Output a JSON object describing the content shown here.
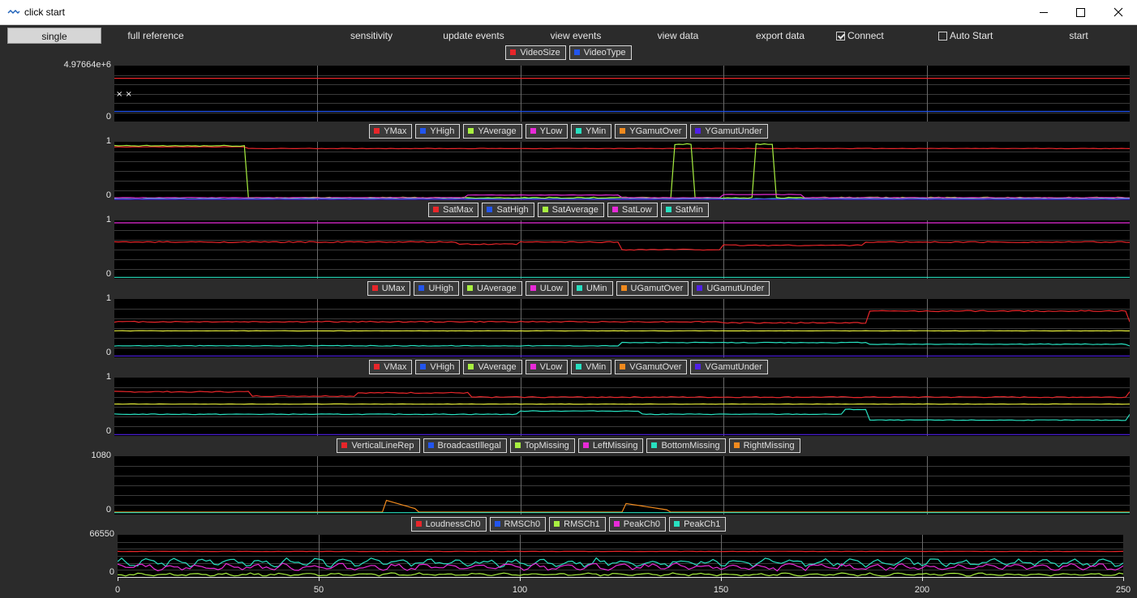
{
  "window": {
    "title": "click start",
    "icon": "app-wave-icon",
    "controls": [
      "minimize-icon",
      "maximize-icon",
      "close-icon"
    ]
  },
  "toolbar": {
    "buttons": [
      "single",
      "full reference",
      "sensitivity",
      "update events",
      "view events",
      "view data",
      "export data",
      "start"
    ],
    "active": "single",
    "checkboxes": [
      {
        "label": "Connect",
        "checked": true
      },
      {
        "label": "Auto Start",
        "checked": false
      }
    ]
  },
  "colors": {
    "red": "#e8262a",
    "blue": "#2255ee",
    "green": "#a8f040",
    "magenta": "#e82ad8",
    "cyan": "#28e0c0",
    "orange": "#f08a1e",
    "indigo": "#5020e8",
    "yellow": "#e6ee3a"
  },
  "chart_data": [
    {
      "type": "line",
      "legend": [
        {
          "name": "VideoSize",
          "color": "#e8262a"
        },
        {
          "name": "VideoType",
          "color": "#2255ee"
        }
      ],
      "ylim_labels": [
        "4.97664e+6",
        "0"
      ],
      "xlim": [
        0,
        250
      ],
      "series": [
        {
          "name": "VideoSize",
          "color": "#e8262a",
          "level": 0.8,
          "noise": 0,
          "segments": []
        },
        {
          "name": "VideoType",
          "color": "#2255ee",
          "level": 0.15,
          "noise": 0,
          "segments": []
        }
      ],
      "markers": [
        "× ×"
      ]
    },
    {
      "type": "line",
      "legend": [
        {
          "name": "YMax",
          "color": "#e8262a"
        },
        {
          "name": "YHigh",
          "color": "#2255ee"
        },
        {
          "name": "YAverage",
          "color": "#a8f040"
        },
        {
          "name": "YLow",
          "color": "#e82ad8"
        },
        {
          "name": "YMin",
          "color": "#28e0c0"
        },
        {
          "name": "YGamutOver",
          "color": "#f08a1e"
        },
        {
          "name": "YGamutUnder",
          "color": "#5020e8"
        }
      ],
      "ylim_labels": [
        "1",
        "0"
      ],
      "xlim": [
        0,
        250
      ],
      "series": [
        {
          "name": "YMax",
          "color": "#e8262a",
          "level": 0.92,
          "noise": 0.004,
          "segments": [
            [
              0,
              33,
              0.95
            ]
          ]
        },
        {
          "name": "YAverage",
          "color": "#a8f040",
          "level": 0.0,
          "noise": 0.01,
          "segments": [
            [
              0,
              33,
              0.97
            ],
            [
              138,
              143,
              1.0
            ],
            [
              158,
              163,
              1.0
            ]
          ]
        },
        {
          "name": "YLow",
          "color": "#e82ad8",
          "level": 0.0,
          "noise": 0.004,
          "segments": [
            [
              87,
              125,
              0.05
            ],
            [
              150,
              170,
              0.06
            ]
          ]
        },
        {
          "name": "YMin",
          "color": "#28e0c0",
          "level": -0.02,
          "noise": 0.004,
          "segments": []
        },
        {
          "name": "YGamutUnder",
          "color": "#5020e8",
          "level": -0.03,
          "noise": 0.002,
          "segments": []
        }
      ]
    },
    {
      "type": "line",
      "legend": [
        {
          "name": "SatMax",
          "color": "#e8262a"
        },
        {
          "name": "SatHigh",
          "color": "#2255ee"
        },
        {
          "name": "SatAverage",
          "color": "#a8f040"
        },
        {
          "name": "SatLow",
          "color": "#e82ad8"
        },
        {
          "name": "SatMin",
          "color": "#28e0c0"
        }
      ],
      "ylim_labels": [
        "1",
        "0"
      ],
      "xlim": [
        0,
        250
      ],
      "series": [
        {
          "name": "SatHigh",
          "color": "#e82ad8",
          "level": 1.0,
          "noise": 0,
          "segments": []
        },
        {
          "name": "SatMax",
          "color": "#e8262a",
          "level": 0.64,
          "noise": 0.01,
          "segments": [
            [
              85,
              100,
              0.6
            ],
            [
              125,
              150,
              0.5
            ],
            [
              150,
              185,
              0.58
            ],
            [
              185,
              250,
              0.64
            ]
          ]
        },
        {
          "name": "SatMin",
          "color": "#28e0c0",
          "level": -0.02,
          "noise": 0,
          "segments": []
        }
      ]
    },
    {
      "type": "line",
      "legend": [
        {
          "name": "UMax",
          "color": "#e8262a"
        },
        {
          "name": "UHigh",
          "color": "#2255ee"
        },
        {
          "name": "UAverage",
          "color": "#a8f040"
        },
        {
          "name": "ULow",
          "color": "#e82ad8"
        },
        {
          "name": "UMin",
          "color": "#28e0c0"
        },
        {
          "name": "UGamutOver",
          "color": "#f08a1e"
        },
        {
          "name": "UGamutUnder",
          "color": "#5020e8"
        }
      ],
      "ylim_labels": [
        "1",
        "0"
      ],
      "xlim": [
        0,
        250
      ],
      "series": [
        {
          "name": "UMax",
          "color": "#e8262a",
          "level": 0.62,
          "noise": 0.01,
          "segments": [
            [
              150,
              186,
              0.6
            ],
            [
              186,
              250,
              0.82
            ]
          ]
        },
        {
          "name": "UAverage",
          "color": "#e6ee3a",
          "level": 0.45,
          "noise": 0.003,
          "segments": []
        },
        {
          "name": "UMin",
          "color": "#28e0c0",
          "level": 0.17,
          "noise": 0.006,
          "segments": [
            [
              125,
              186,
              0.23
            ],
            [
              186,
              250,
              0.2
            ]
          ]
        },
        {
          "name": "UGamutUnder",
          "color": "#5020e8",
          "level": -0.02,
          "noise": 0,
          "segments": []
        }
      ]
    },
    {
      "type": "line",
      "legend": [
        {
          "name": "VMax",
          "color": "#e8262a"
        },
        {
          "name": "VHigh",
          "color": "#2255ee"
        },
        {
          "name": "VAverage",
          "color": "#a8f040"
        },
        {
          "name": "VLow",
          "color": "#e82ad8"
        },
        {
          "name": "VMin",
          "color": "#28e0c0"
        },
        {
          "name": "VGamutOver",
          "color": "#f08a1e"
        },
        {
          "name": "VGamutUnder",
          "color": "#5020e8"
        }
      ],
      "ylim_labels": [
        "1",
        "0"
      ],
      "xlim": [
        0,
        250
      ],
      "series": [
        {
          "name": "VMax",
          "color": "#e8262a",
          "level": 0.78,
          "noise": 0.01,
          "segments": [
            [
              34,
              60,
              0.7
            ],
            [
              60,
              88,
              0.76
            ],
            [
              88,
              250,
              0.68
            ]
          ]
        },
        {
          "name": "VAverage",
          "color": "#e6ee3a",
          "level": 0.55,
          "noise": 0.003,
          "segments": []
        },
        {
          "name": "VMin",
          "color": "#28e0c0",
          "level": 0.36,
          "noise": 0.006,
          "segments": [
            [
              100,
              130,
              0.42
            ],
            [
              180,
              186,
              0.45
            ],
            [
              186,
              250,
              0.25
            ]
          ]
        },
        {
          "name": "VGamutUnder",
          "color": "#5020e8",
          "level": -0.02,
          "noise": 0,
          "segments": []
        }
      ]
    },
    {
      "type": "line",
      "legend": [
        {
          "name": "VerticalLineRep",
          "color": "#e8262a"
        },
        {
          "name": "BroadcastIllegal",
          "color": "#2255ee"
        },
        {
          "name": "TopMissing",
          "color": "#a8f040"
        },
        {
          "name": "LeftMissing",
          "color": "#e82ad8"
        },
        {
          "name": "BottomMissing",
          "color": "#28e0c0"
        },
        {
          "name": "RightMissing",
          "color": "#f08a1e"
        }
      ],
      "ylim_labels": [
        "1080",
        "0"
      ],
      "xlim": [
        0,
        250
      ],
      "series": [
        {
          "name": "RightMissing",
          "color": "#f08a1e",
          "level": 0.0,
          "noise": 0,
          "segments": [
            [
              67,
              75,
              0.22
            ],
            [
              126,
              137,
              0.16
            ]
          ]
        },
        {
          "name": "BottomMissing",
          "color": "#28e0c0",
          "level": -0.01,
          "noise": 0,
          "segments": []
        }
      ]
    },
    {
      "type": "line",
      "legend": [
        {
          "name": "LoudnessCh0",
          "color": "#e8262a"
        },
        {
          "name": "RMSCh0",
          "color": "#2255ee"
        },
        {
          "name": "RMSCh1",
          "color": "#a8f040"
        },
        {
          "name": "PeakCh0",
          "color": "#e82ad8"
        },
        {
          "name": "PeakCh1",
          "color": "#28e0c0"
        }
      ],
      "ylim_labels": [
        "66550",
        "0"
      ],
      "xlim": [
        0,
        250
      ],
      "xticks": [
        "0",
        "50",
        "100",
        "150",
        "200",
        "250"
      ],
      "series": [
        {
          "name": "LoudnessCh0",
          "color": "#e8262a",
          "level": 0.62,
          "noise": 0.005,
          "segments": []
        },
        {
          "name": "PeakCh1",
          "color": "#28e0c0",
          "level": 0.32,
          "noise": 0.12,
          "segments": []
        },
        {
          "name": "PeakCh0",
          "color": "#e82ad8",
          "level": 0.2,
          "noise": 0.1,
          "segments": []
        },
        {
          "name": "RMSCh1",
          "color": "#a8f040",
          "level": 0.0,
          "noise": 0.04,
          "segments": []
        }
      ]
    }
  ]
}
